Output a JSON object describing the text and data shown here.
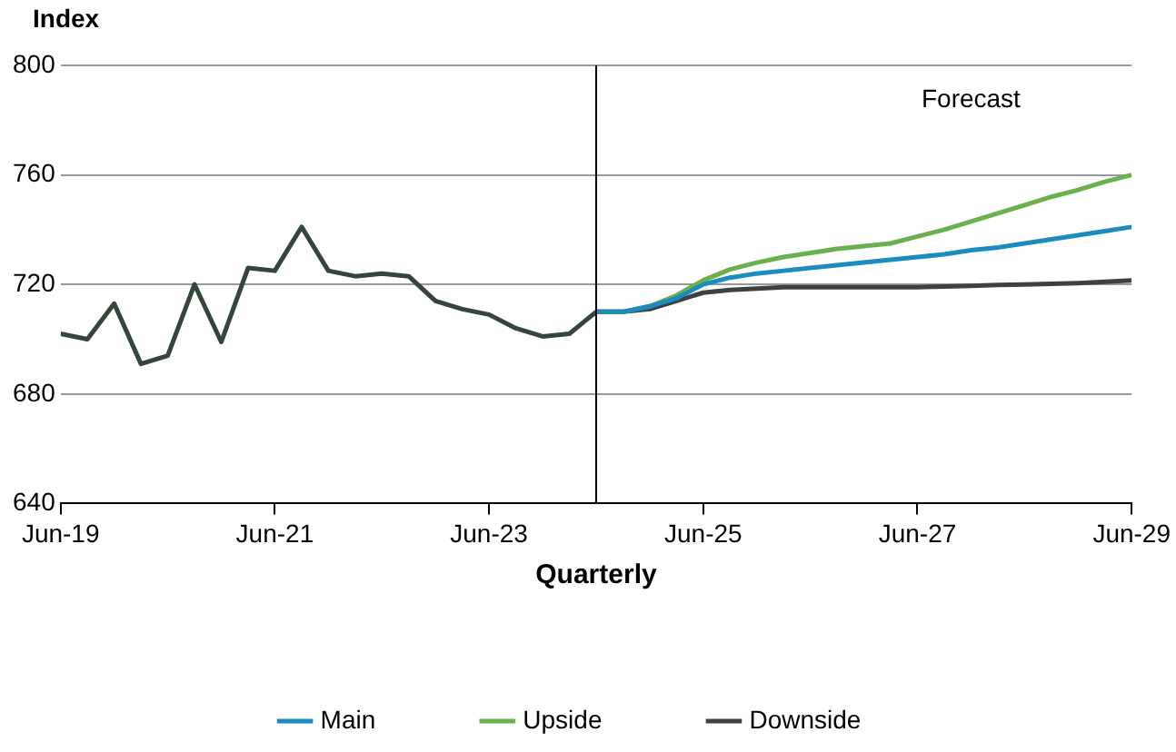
{
  "chart_data": {
    "type": "line",
    "ylabel": "Index",
    "xlabel": "Quarterly",
    "annotations": [
      "Forecast"
    ],
    "xlim": [
      "2019-06",
      "2029-06"
    ],
    "xticks": [
      {
        "value": "2019-06",
        "label": "Jun-19"
      },
      {
        "value": "2021-06",
        "label": "Jun-21"
      },
      {
        "value": "2023-06",
        "label": "Jun-23"
      },
      {
        "value": "2025-06",
        "label": "Jun-25"
      },
      {
        "value": "2027-06",
        "label": "Jun-27"
      },
      {
        "value": "2029-06",
        "label": "Jun-29"
      }
    ],
    "ylim": [
      640,
      800
    ],
    "yticks": [
      640,
      680,
      720,
      760,
      800
    ],
    "grid": "y",
    "legend": "bottom",
    "marker": "none",
    "line_style": "solid",
    "ref_lines": [
      {
        "axis": "x",
        "value": "2024-06",
        "color": "#000000"
      }
    ],
    "series": [
      {
        "color": "#34463a",
        "x": [
          "2019-06",
          "2019-09",
          "2019-12",
          "2020-03",
          "2020-06",
          "2020-09",
          "2020-12",
          "2021-03",
          "2021-06",
          "2021-09",
          "2021-12",
          "2022-03",
          "2022-06",
          "2022-09",
          "2022-12",
          "2023-03",
          "2023-06",
          "2023-09",
          "2023-12",
          "2024-03",
          "2024-06"
        ],
        "values": [
          702,
          700,
          713,
          691,
          694,
          720,
          699,
          726,
          725,
          741,
          725,
          723,
          724,
          723,
          714,
          711,
          709,
          704,
          701,
          702,
          710
        ]
      },
      {
        "name": "Main",
        "color": "#1a8cc0",
        "x": [
          "2024-06",
          "2024-09",
          "2024-12",
          "2025-03",
          "2025-06",
          "2025-09",
          "2025-12",
          "2026-03",
          "2026-06",
          "2026-09",
          "2026-12",
          "2027-03",
          "2027-06",
          "2027-09",
          "2027-12",
          "2028-03",
          "2028-06",
          "2028-09",
          "2028-12",
          "2029-03",
          "2029-06"
        ],
        "values": [
          710,
          710,
          712,
          715,
          720,
          722.5,
          724,
          725,
          726,
          727,
          728,
          729,
          730,
          731,
          732.5,
          733.5,
          735,
          736.5,
          738,
          739.5,
          741
        ]
      },
      {
        "name": "Upside",
        "color": "#6ab04c",
        "x": [
          "2024-06",
          "2024-09",
          "2024-12",
          "2025-03",
          "2025-06",
          "2025-09",
          "2025-12",
          "2026-03",
          "2026-06",
          "2026-09",
          "2026-12",
          "2027-03",
          "2027-06",
          "2027-09",
          "2027-12",
          "2028-03",
          "2028-06",
          "2028-09",
          "2028-12",
          "2029-03",
          "2029-06"
        ],
        "values": [
          710,
          710,
          712,
          716,
          721.5,
          725.5,
          728,
          730,
          731.5,
          733,
          734,
          735,
          737.5,
          740,
          743,
          746,
          749,
          752,
          754.5,
          757.5,
          760
        ]
      },
      {
        "name": "Downside",
        "color": "#404040",
        "x": [
          "2024-06",
          "2024-09",
          "2024-12",
          "2025-03",
          "2025-06",
          "2025-09",
          "2025-12",
          "2026-03",
          "2026-06",
          "2026-09",
          "2026-12",
          "2027-03",
          "2027-06",
          "2027-09",
          "2027-12",
          "2028-03",
          "2028-06",
          "2028-09",
          "2028-12",
          "2029-03",
          "2029-06"
        ],
        "values": [
          710,
          710,
          711,
          714,
          717,
          718,
          718.5,
          719,
          719,
          719,
          719,
          719,
          719,
          719.2,
          719.5,
          719.8,
          720,
          720.2,
          720.5,
          721,
          721.5
        ]
      }
    ]
  }
}
